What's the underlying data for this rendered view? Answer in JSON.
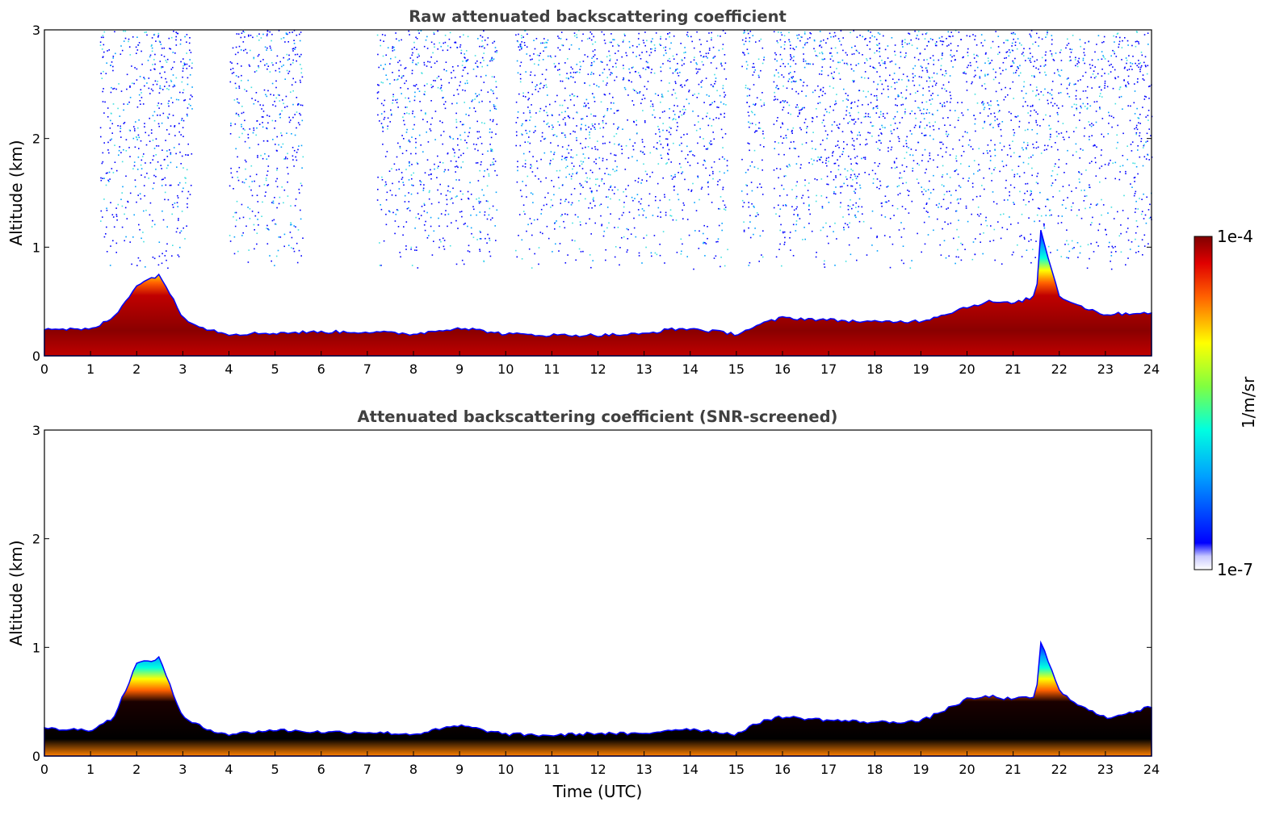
{
  "chart_data": [
    {
      "type": "heatmap",
      "title": "Raw attenuated backscattering coefficient",
      "xlabel": "",
      "ylabel": "Altitude (km)",
      "xlim": [
        0,
        24
      ],
      "ylim": [
        0,
        3
      ],
      "xticks": [
        "0",
        "1",
        "2",
        "3",
        "4",
        "5",
        "6",
        "7",
        "8",
        "9",
        "10",
        "11",
        "12",
        "13",
        "14",
        "15",
        "16",
        "17",
        "18",
        "19",
        "20",
        "21",
        "22",
        "23",
        "24"
      ],
      "yticks": [
        "0",
        "1",
        "2",
        "3"
      ],
      "boundary_layer_top_km": {
        "x": [
          0,
          1,
          1.5,
          2,
          2.5,
          3,
          3.5,
          4,
          5,
          6,
          7,
          8,
          9,
          10,
          11,
          12,
          13,
          13.5,
          14,
          15,
          15.6,
          16,
          17,
          18,
          19,
          19.5,
          20,
          20.5,
          21,
          21.5,
          21.6,
          22,
          22.5,
          23,
          24
        ],
        "y": [
          0.25,
          0.24,
          0.35,
          0.65,
          0.75,
          0.35,
          0.25,
          0.2,
          0.21,
          0.22,
          0.22,
          0.2,
          0.26,
          0.2,
          0.19,
          0.19,
          0.2,
          0.24,
          0.25,
          0.2,
          0.3,
          0.35,
          0.33,
          0.31,
          0.32,
          0.38,
          0.45,
          0.5,
          0.48,
          0.55,
          1.15,
          0.55,
          0.45,
          0.38,
          0.4
        ]
      },
      "noise_regions_hours": [
        [
          1.2,
          3.2
        ],
        [
          4.0,
          5.6
        ],
        [
          7.2,
          9.8
        ],
        [
          10.2,
          14.8
        ],
        [
          15.1,
          15.6
        ],
        [
          15.8,
          24
        ]
      ],
      "colorbar": {
        "min": "1e-7",
        "max": "1e-4",
        "label": "1/m/sr"
      }
    },
    {
      "type": "heatmap",
      "title": "Attenuated backscattering coefficient (SNR-screened)",
      "xlabel": "Time (UTC)",
      "ylabel": "Altitude (km)",
      "xlim": [
        0,
        24
      ],
      "ylim": [
        0,
        3
      ],
      "xticks": [
        "0",
        "1",
        "2",
        "3",
        "4",
        "5",
        "6",
        "7",
        "8",
        "9",
        "10",
        "11",
        "12",
        "13",
        "14",
        "15",
        "16",
        "17",
        "18",
        "19",
        "20",
        "21",
        "22",
        "23",
        "24"
      ],
      "yticks": [
        "0",
        "1",
        "2",
        "3"
      ],
      "boundary_layer_top_km": {
        "x": [
          0,
          1,
          1.5,
          2,
          2.5,
          3,
          3.5,
          4,
          5,
          6,
          7,
          8,
          9,
          10,
          11,
          12,
          13,
          13.5,
          14,
          15,
          15.6,
          16,
          17,
          18,
          19,
          19.5,
          20,
          20.5,
          21,
          21.5,
          21.6,
          22,
          22.5,
          23,
          24
        ],
        "y": [
          0.25,
          0.24,
          0.35,
          0.85,
          0.9,
          0.35,
          0.25,
          0.2,
          0.24,
          0.22,
          0.22,
          0.2,
          0.28,
          0.2,
          0.19,
          0.21,
          0.2,
          0.24,
          0.25,
          0.2,
          0.33,
          0.36,
          0.33,
          0.31,
          0.32,
          0.42,
          0.52,
          0.55,
          0.52,
          0.55,
          1.05,
          0.6,
          0.45,
          0.35,
          0.45
        ]
      }
    }
  ],
  "colorbar": {
    "max_label": "1e-4",
    "min_label": "1e-7",
    "unit_label": "1/m/sr"
  }
}
